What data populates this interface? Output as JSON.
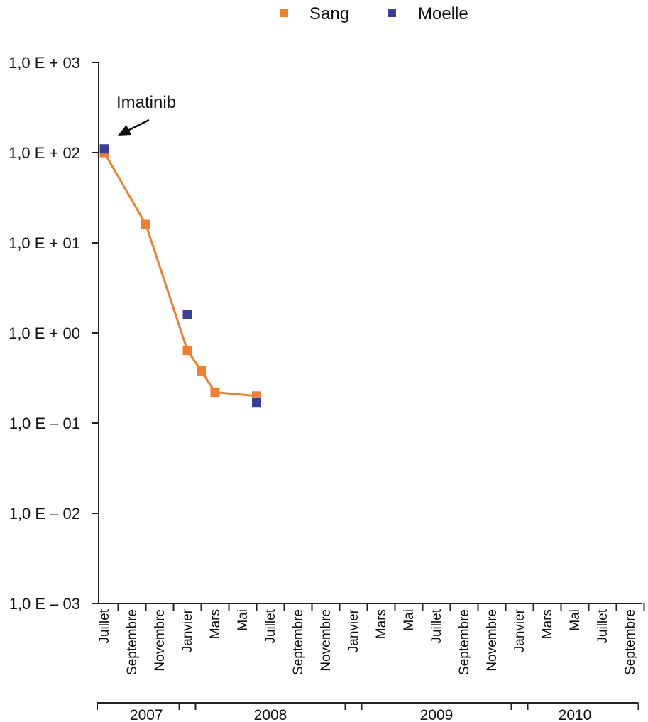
{
  "chart_data": {
    "type": "scatter",
    "title": "",
    "xlabel": "",
    "ylabel": "",
    "y_scale": "log",
    "ylim": [
      0.001,
      1000
    ],
    "y_ticks": [
      {
        "value": 1000,
        "label": "1,0 E + 03"
      },
      {
        "value": 100,
        "label": "1,0 E + 02"
      },
      {
        "value": 10,
        "label": "1,0 E + 01"
      },
      {
        "value": 1,
        "label": "1,0 E + 00"
      },
      {
        "value": 0.1,
        "label": "1,0 E – 01"
      },
      {
        "value": 0.01,
        "label": "1,0 E – 02"
      },
      {
        "value": 0.001,
        "label": "1,0 E – 03"
      }
    ],
    "x_ticks": [
      "Juillet",
      "Septembre",
      "Novembre",
      "Janvier",
      "Mars",
      "Mai",
      "Juillet",
      "Septembre",
      "Novembre",
      "Janvier",
      "Mars",
      "Mai",
      "Juillet",
      "Septembre",
      "Novembre",
      "Janvier",
      "Mars",
      "Mai",
      "Juillet",
      "Septembre"
    ],
    "years": [
      {
        "label": "2007",
        "from": 0,
        "to": 3
      },
      {
        "label": "2008",
        "from": 3,
        "to": 9
      },
      {
        "label": "2009",
        "from": 9,
        "to": 15
      },
      {
        "label": "2010",
        "from": 15,
        "to": 19
      }
    ],
    "legend_position": "top-right",
    "series": [
      {
        "name": "Sang",
        "color": "#f07f2e",
        "connected": true,
        "points": [
          {
            "x": "2007-07",
            "y": 100
          },
          {
            "x": "2007-10",
            "y": 16
          },
          {
            "x": "2008-01",
            "y": 0.64
          },
          {
            "x": "2008-02",
            "y": 0.38
          },
          {
            "x": "2008-03",
            "y": 0.22
          },
          {
            "x": "2008-06",
            "y": 0.2
          }
        ]
      },
      {
        "name": "Moelle",
        "color": "#3a3e96",
        "connected": false,
        "points": [
          {
            "x": "2007-07",
            "y": 110
          },
          {
            "x": "2008-01",
            "y": 1.6
          },
          {
            "x": "2008-06",
            "y": 0.17
          }
        ]
      }
    ],
    "annotations": [
      {
        "text": "Imatinib",
        "x": "2007-07",
        "y": 100
      }
    ]
  }
}
